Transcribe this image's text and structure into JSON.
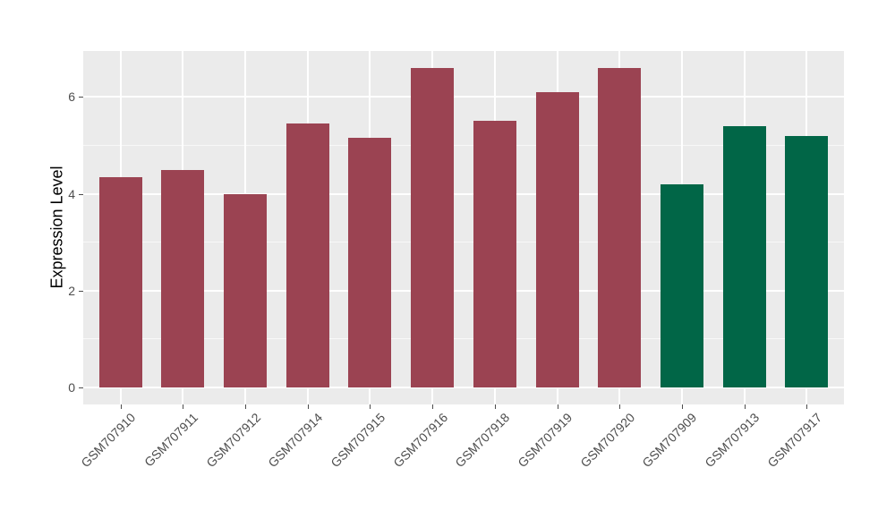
{
  "chart_data": {
    "type": "bar",
    "title": "",
    "xlabel": "",
    "ylabel": "Expression Level",
    "categories": [
      "GSM707910",
      "GSM707911",
      "GSM707912",
      "GSM707914",
      "GSM707915",
      "GSM707916",
      "GSM707918",
      "GSM707919",
      "GSM707920",
      "GSM707909",
      "GSM707913",
      "GSM707917"
    ],
    "values": [
      4.35,
      4.5,
      4.0,
      5.45,
      5.15,
      6.6,
      5.5,
      6.1,
      6.6,
      4.2,
      5.4,
      5.2
    ],
    "bar_colors": [
      "#9B4352",
      "#9B4352",
      "#9B4352",
      "#9B4352",
      "#9B4352",
      "#9B4352",
      "#9B4352",
      "#9B4352",
      "#9B4352",
      "#016647",
      "#016647",
      "#016647"
    ],
    "group_colors": {
      "maroon": "#9B4352",
      "green": "#016647"
    },
    "yticks": [
      0,
      2,
      4,
      6
    ],
    "yticks_minor": [
      1,
      3,
      5
    ],
    "ylim": [
      -0.3,
      6.95
    ],
    "grid": "major-and-minor",
    "legend_position": "none",
    "style": {
      "background": "#FFFFFF",
      "panel_bg": "#EBEBEB",
      "gridline_color": "#FFFFFF",
      "tick_label_color": "#4D4D4D",
      "axis_title_color": "#000000"
    }
  }
}
